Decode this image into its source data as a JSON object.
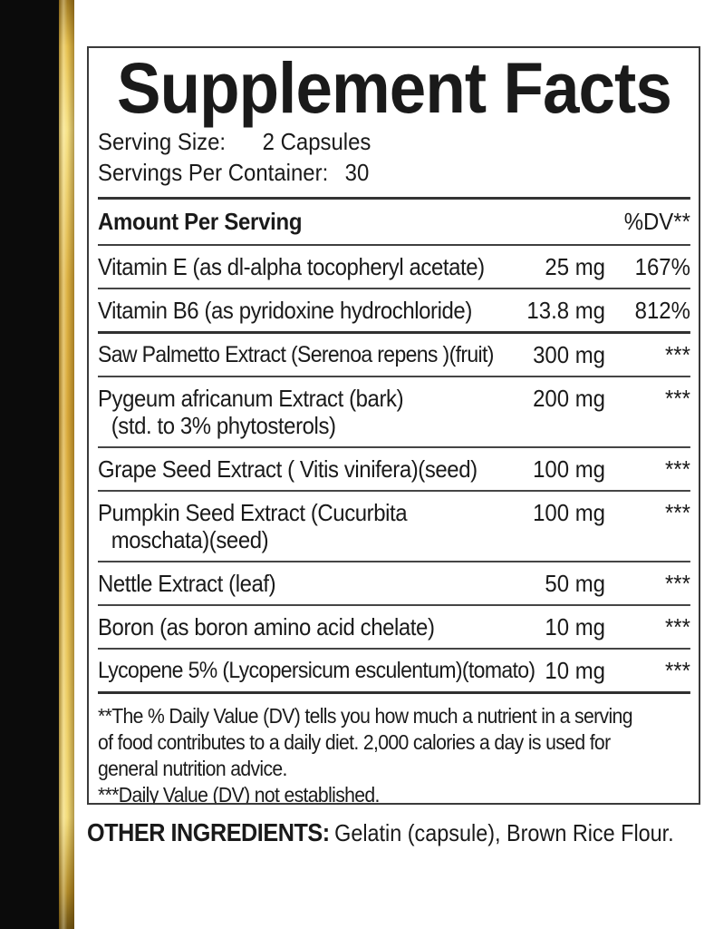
{
  "panel": {
    "title": "Supplement Facts",
    "serving_size": {
      "label": "Serving Size:",
      "value": "2 Capsules"
    },
    "servings_per_container": {
      "label": "Servings Per Container:",
      "value": "30"
    },
    "header": {
      "amount_label": "Amount Per Serving",
      "dv_label": "%DV**"
    },
    "rows": [
      {
        "name": "Vitamin E (as dl-alpha tocopheryl acetate)",
        "amount": "25 mg",
        "dv": "167%"
      },
      {
        "name": "Vitamin B6 (as pyridoxine hydrochloride)",
        "amount": "13.8 mg",
        "dv": "812%"
      },
      {
        "name": "Saw Palmetto Extract (Serenoa repens )(fruit)",
        "amount": "300 mg",
        "dv": "***"
      },
      {
        "name": "Pygeum africanum Extract (bark)",
        "name2": "(std. to 3% phytosterols)",
        "amount": "200 mg",
        "dv": "***"
      },
      {
        "name": "Grape Seed Extract ( Vitis vinifera)(seed)",
        "amount": "100 mg",
        "dv": "***"
      },
      {
        "name": "Pumpkin Seed Extract (Cucurbita",
        "name2": "moschata)(seed)",
        "amount": "100 mg",
        "dv": "***"
      },
      {
        "name": "Nettle Extract (leaf)",
        "amount": "50 mg",
        "dv": "***"
      },
      {
        "name": "Boron (as boron amino acid chelate)",
        "amount": "10 mg",
        "dv": "***"
      },
      {
        "name": "Lycopene 5% (Lycopersicum esculentum)(tomato)",
        "amount": "10 mg",
        "dv": "***"
      }
    ],
    "footnote_lines": [
      "**The % Daily Value (DV) tells you how much a nutrient in a serving",
      "of food contributes to a daily diet. 2,000 calories a day is used for",
      "general nutrition advice.",
      "***Daily Value (DV) not established."
    ]
  },
  "other_ingredients": {
    "label": "OTHER INGREDIENTS:",
    "value": "Gelatin (capsule), Brown Rice Flour."
  },
  "colors": {
    "gold": "#d9a93c",
    "gold_dark": "#8a6518",
    "gold_light": "#f7e488",
    "bar_black": "#0b0b0b",
    "text": "#1a1a1a",
    "rule": "#3f3f3f"
  }
}
